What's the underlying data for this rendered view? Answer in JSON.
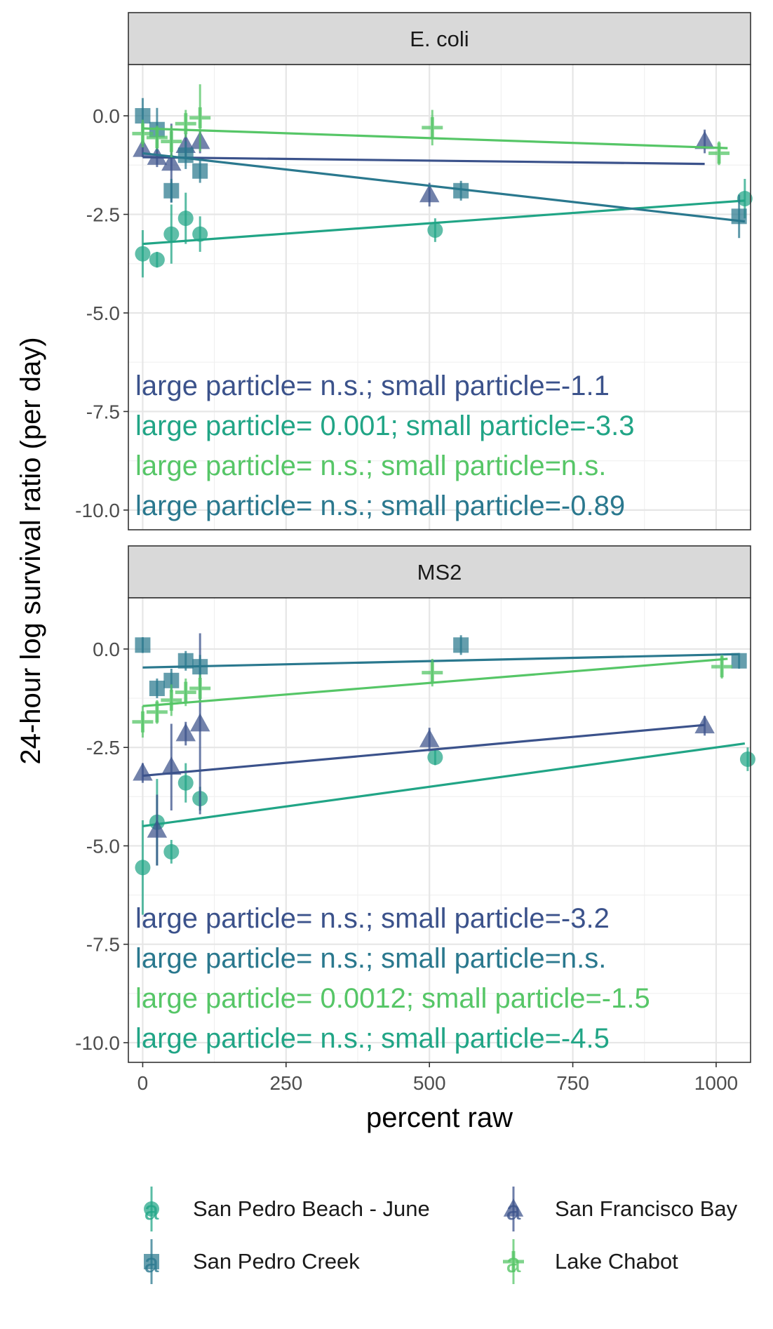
{
  "chart_data": {
    "type": "scatter",
    "xlabel": "percent raw",
    "ylabel": "24-hour log survival ratio (per day)",
    "x_ticks": [
      "0",
      "250",
      "500",
      "750",
      "1000"
    ],
    "y_ticks": [
      "0.0",
      "-2.5",
      "-5.0",
      "-7.5",
      "-10.0"
    ],
    "xlim": [
      -25,
      1060
    ],
    "ylim": [
      -10.5,
      1.3
    ],
    "grid": true,
    "legend_position": "bottom",
    "colors": {
      "San Pedro Beach - June": "#21a586",
      "San Francisco Bay": "#3b528b",
      "San Pedro Creek": "#2a788e",
      "Lake Chabot": "#56c667"
    },
    "legend": [
      {
        "name": "San Pedro Beach - June",
        "shape": "circle",
        "glyph": "a"
      },
      {
        "name": "San Francisco Bay",
        "shape": "triangle",
        "glyph": "a"
      },
      {
        "name": "San Pedro Creek",
        "shape": "square",
        "glyph": "a"
      },
      {
        "name": "Lake Chabot",
        "shape": "plus",
        "glyph": "a"
      }
    ],
    "panels": [
      {
        "title": "E. coli",
        "series": [
          {
            "name": "San Pedro Beach - June",
            "shape": "circle",
            "points": [
              {
                "x": 0,
                "y": -3.5,
                "err": 0.6
              },
              {
                "x": 25,
                "y": -3.65,
                "err": 0.2
              },
              {
                "x": 50,
                "y": -3.0,
                "err": 0.75
              },
              {
                "x": 75,
                "y": -2.6,
                "err": 0.65
              },
              {
                "x": 100,
                "y": -3.0,
                "err": 0.45
              },
              {
                "x": 510,
                "y": -2.9,
                "err": 0.3
              },
              {
                "x": 1050,
                "y": -2.1,
                "err": 0.5
              }
            ],
            "fit": {
              "x1": 0,
              "y1": -3.25,
              "x2": 1050,
              "y2": -2.15
            }
          },
          {
            "name": "San Francisco Bay",
            "shape": "triangle",
            "points": [
              {
                "x": 0,
                "y": -0.85,
                "err": 0.2
              },
              {
                "x": 25,
                "y": -1.05,
                "err": 0.25
              },
              {
                "x": 50,
                "y": -1.2,
                "err": 1.0
              },
              {
                "x": 75,
                "y": -0.75,
                "err": 0.3
              },
              {
                "x": 100,
                "y": -0.65,
                "err": 0.3
              },
              {
                "x": 500,
                "y": -2.0,
                "err": 0.3
              },
              {
                "x": 980,
                "y": -0.65,
                "err": 0.3
              }
            ],
            "fit": {
              "x1": 0,
              "y1": -1.05,
              "x2": 980,
              "y2": -1.22
            }
          },
          {
            "name": "San Pedro Creek",
            "shape": "square",
            "points": [
              {
                "x": 0,
                "y": 0.0,
                "err": 0.45
              },
              {
                "x": 25,
                "y": -0.35,
                "err": 0.55
              },
              {
                "x": 50,
                "y": -1.9,
                "err": 0.3
              },
              {
                "x": 75,
                "y": -1.0,
                "err": 0.35
              },
              {
                "x": 100,
                "y": -1.4,
                "err": 0.3
              },
              {
                "x": 555,
                "y": -1.9,
                "err": 0.25
              },
              {
                "x": 1040,
                "y": -2.55,
                "err": 0.55
              }
            ],
            "fit": {
              "x1": 0,
              "y1": -0.95,
              "x2": 1050,
              "y2": -2.68
            }
          },
          {
            "name": "Lake Chabot",
            "shape": "plus",
            "points": [
              {
                "x": 0,
                "y": -0.45,
                "err": 0.35
              },
              {
                "x": 25,
                "y": -0.55,
                "err": 0.3
              },
              {
                "x": 50,
                "y": -0.65,
                "err": 0.4
              },
              {
                "x": 75,
                "y": -0.2,
                "err": 0.35
              },
              {
                "x": 100,
                "y": -0.05,
                "err": 0.85
              },
              {
                "x": 505,
                "y": -0.3,
                "err": 0.45
              },
              {
                "x": 1005,
                "y": -0.95,
                "err": 0.3
              }
            ],
            "fit": {
              "x1": 0,
              "y1": -0.32,
              "x2": 1020,
              "y2": -0.82
            }
          }
        ],
        "annotations": [
          {
            "text": "large particle= n.s.; small particle=-1.1",
            "series": "San Francisco Bay"
          },
          {
            "text": "large particle= 0.001; small particle=-3.3",
            "series": "San Pedro Beach - June"
          },
          {
            "text": "large particle= n.s.; small particle=n.s.",
            "series": "Lake Chabot"
          },
          {
            "text": "large particle= n.s.; small particle=-0.89",
            "series": "San Pedro Creek"
          }
        ]
      },
      {
        "title": "MS2",
        "series": [
          {
            "name": "San Pedro Beach - June",
            "shape": "circle",
            "points": [
              {
                "x": 0,
                "y": -5.55,
                "err": 1.2
              },
              {
                "x": 25,
                "y": -4.4,
                "err": 1.1
              },
              {
                "x": 50,
                "y": -5.15,
                "err": 0.3
              },
              {
                "x": 75,
                "y": -3.4,
                "err": 0.5
              },
              {
                "x": 100,
                "y": -3.8,
                "err": 0.3
              },
              {
                "x": 510,
                "y": -2.75,
                "err": 0.2
              },
              {
                "x": 1055,
                "y": -2.8,
                "err": 0.3
              }
            ],
            "fit": {
              "x1": 0,
              "y1": -4.5,
              "x2": 1050,
              "y2": -2.4
            }
          },
          {
            "name": "San Francisco Bay",
            "shape": "triangle",
            "points": [
              {
                "x": 0,
                "y": -3.15,
                "err": 0.25
              },
              {
                "x": 25,
                "y": -4.6,
                "err": 0.9
              },
              {
                "x": 50,
                "y": -3.0,
                "err": 1.1
              },
              {
                "x": 75,
                "y": -2.15,
                "err": 0.3
              },
              {
                "x": 100,
                "y": -1.9,
                "err": 2.3
              },
              {
                "x": 500,
                "y": -2.3,
                "err": 0.3
              },
              {
                "x": 980,
                "y": -1.95,
                "err": 0.25
              }
            ],
            "fit": {
              "x1": 0,
              "y1": -3.22,
              "x2": 980,
              "y2": -1.93
            }
          },
          {
            "name": "San Pedro Creek",
            "shape": "square",
            "points": [
              {
                "x": 0,
                "y": 0.1,
                "err": 0.2
              },
              {
                "x": 25,
                "y": -1.0,
                "err": 0.25
              },
              {
                "x": 50,
                "y": -0.8,
                "err": 0.3
              },
              {
                "x": 75,
                "y": -0.3,
                "err": 0.25
              },
              {
                "x": 100,
                "y": -0.45,
                "err": 0.3
              },
              {
                "x": 555,
                "y": 0.1,
                "err": 0.25
              },
              {
                "x": 1040,
                "y": -0.3,
                "err": 0.2
              }
            ],
            "fit": {
              "x1": 0,
              "y1": -0.47,
              "x2": 1040,
              "y2": -0.13
            }
          },
          {
            "name": "Lake Chabot",
            "shape": "plus",
            "points": [
              {
                "x": 0,
                "y": -1.85,
                "err": 0.4
              },
              {
                "x": 25,
                "y": -1.6,
                "err": 0.3
              },
              {
                "x": 50,
                "y": -1.3,
                "err": 0.4
              },
              {
                "x": 75,
                "y": -1.1,
                "err": 0.35
              },
              {
                "x": 100,
                "y": -1.0,
                "err": 0.35
              },
              {
                "x": 505,
                "y": -0.6,
                "err": 0.35
              },
              {
                "x": 1010,
                "y": -0.45,
                "err": 0.3
              }
            ],
            "fit": {
              "x1": 0,
              "y1": -1.45,
              "x2": 1020,
              "y2": -0.25
            }
          }
        ],
        "annotations": [
          {
            "text": "large particle= n.s.; small particle=-3.2",
            "series": "San Francisco Bay"
          },
          {
            "text": "large particle= n.s.; small particle=n.s.",
            "series": "San Pedro Creek"
          },
          {
            "text": "large particle= 0.0012; small particle=-1.5",
            "series": "Lake Chabot"
          },
          {
            "text": "large particle= n.s.; small particle=-4.5",
            "series": "San Pedro Beach - June"
          }
        ]
      }
    ]
  }
}
